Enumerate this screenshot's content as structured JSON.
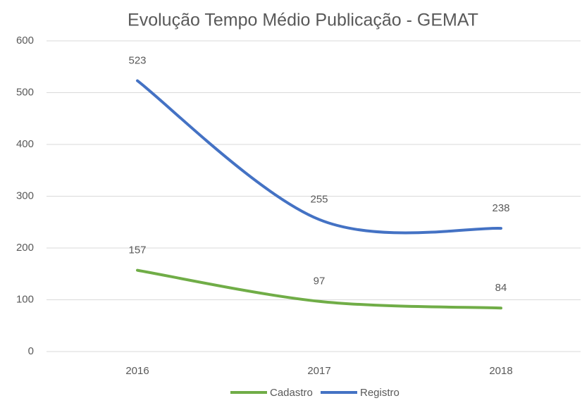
{
  "chart_data": {
    "type": "line",
    "title": "Evolução Tempo Médio Publicação - GEMAT",
    "categories": [
      "2016",
      "2017",
      "2018"
    ],
    "series": [
      {
        "name": "Cadastro",
        "color": "#70ad47",
        "values": [
          157,
          97,
          84
        ]
      },
      {
        "name": "Registro",
        "color": "#4472c4",
        "values": [
          523,
          255,
          238
        ]
      }
    ],
    "ylim": [
      0,
      600
    ],
    "yticks": [
      0,
      100,
      200,
      300,
      400,
      500,
      600
    ],
    "grid": true,
    "legend": "bottom"
  }
}
